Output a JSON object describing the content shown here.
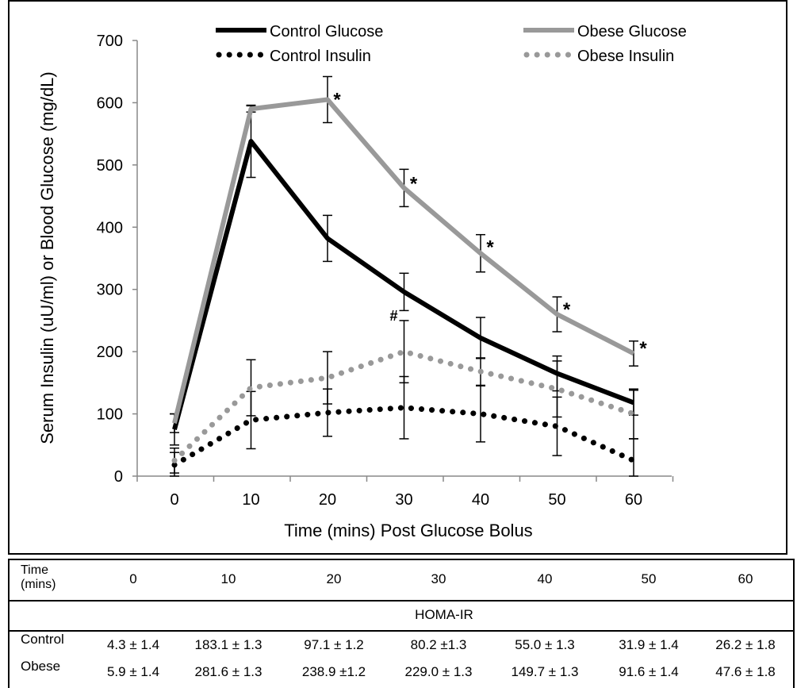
{
  "chart_data": {
    "type": "line",
    "xlabel": "Time (mins) Post Glucose Bolus",
    "ylabel": "Serum Insulin (uU/ml) or Blood Glucose (mg/dL)",
    "x": [
      0,
      10,
      20,
      30,
      40,
      50,
      60
    ],
    "xlim": [
      0,
      60
    ],
    "ylim": [
      0,
      700
    ],
    "yticks": [
      0,
      100,
      200,
      300,
      400,
      500,
      600,
      700
    ],
    "grid": false,
    "legend_position": "top",
    "series": [
      {
        "name": "Control Glucose",
        "style": "solid",
        "color": "#000000",
        "values": [
          75,
          538,
          382,
          296,
          222,
          165,
          118
        ],
        "errors": [
          25,
          58,
          37,
          30,
          33,
          28,
          20
        ]
      },
      {
        "name": "Obese Glucose",
        "style": "solid",
        "color": "#999999",
        "values": [
          85,
          590,
          605,
          463,
          358,
          260,
          197
        ],
        "errors": [
          15,
          5,
          37,
          30,
          30,
          28,
          20
        ]
      },
      {
        "name": "Control Insulin",
        "style": "dotted",
        "color": "#000000",
        "values": [
          18,
          90,
          102,
          110,
          100,
          80,
          25
        ],
        "errors": [
          20,
          46,
          38,
          50,
          45,
          47,
          35
        ]
      },
      {
        "name": "Obese Insulin",
        "style": "dotted",
        "color": "#999999",
        "values": [
          25,
          142,
          158,
          200,
          168,
          140,
          100
        ],
        "errors": [
          20,
          45,
          42,
          50,
          22,
          45,
          40
        ]
      }
    ],
    "annotations": [
      {
        "text": "*",
        "x": 20,
        "y": 605
      },
      {
        "text": "*",
        "x": 30,
        "y": 470
      },
      {
        "text": "*",
        "x": 40,
        "y": 368
      },
      {
        "text": "*",
        "x": 50,
        "y": 268
      },
      {
        "text": "*",
        "x": 60,
        "y": 205
      },
      {
        "text": "#",
        "x": 30,
        "y": 250
      }
    ]
  },
  "table": {
    "time_label": "Time\n(mins)",
    "times": [
      "0",
      "10",
      "20",
      "30",
      "40",
      "50",
      "60"
    ],
    "section_title": "HOMA-IR",
    "rows": [
      {
        "label": "Control",
        "values": [
          "4.3 ± 1.4",
          "183.1 ± 1.3",
          "97.1 ± 1.2",
          "80.2 ±1.3",
          "55.0 ± 1.3",
          "31.9 ± 1.4",
          "26.2 ± 1.8"
        ]
      },
      {
        "label": "Obese",
        "values": [
          "5.9 ± 1.4",
          "281.6 ± 1.3",
          "238.9 ±1.2",
          "229.0 ± 1.3",
          "149.7 ± 1.3",
          "91.6 ± 1.4",
          "47.6 ± 1.8"
        ]
      }
    ]
  }
}
